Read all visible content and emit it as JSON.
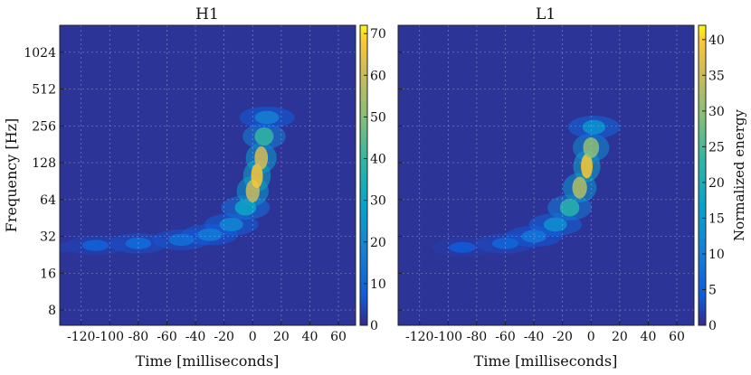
{
  "chart_data": [
    {
      "type": "heatmap",
      "title": "H1",
      "xlabel": "Time [milliseconds]",
      "ylabel": "Frequency [Hz]",
      "xlim": [
        -135,
        72
      ],
      "ylim": [
        6,
        1700
      ],
      "y_scale": "log2",
      "x_ticks": [
        -120,
        -100,
        -80,
        -60,
        -40,
        -20,
        0,
        20,
        40,
        60
      ],
      "y_ticks": [
        8,
        16,
        32,
        64,
        128,
        256,
        512,
        1024
      ],
      "colorbar": {
        "label": "",
        "min": 0,
        "max": 72,
        "ticks": [
          0,
          10,
          20,
          30,
          40,
          50,
          60,
          70
        ]
      },
      "grid": true,
      "track": [
        {
          "t": -130,
          "f": 26,
          "e": 3
        },
        {
          "t": -110,
          "f": 27,
          "e": 9
        },
        {
          "t": -80,
          "f": 28,
          "e": 12
        },
        {
          "t": -50,
          "f": 30,
          "e": 13
        },
        {
          "t": -30,
          "f": 33,
          "e": 16
        },
        {
          "t": -15,
          "f": 40,
          "e": 20
        },
        {
          "t": -5,
          "f": 55,
          "e": 30
        },
        {
          "t": 0,
          "f": 75,
          "e": 60
        },
        {
          "t": 3,
          "f": 100,
          "e": 68
        },
        {
          "t": 6,
          "f": 140,
          "e": 62
        },
        {
          "t": 8,
          "f": 210,
          "e": 40
        },
        {
          "t": 10,
          "f": 300,
          "e": 18
        }
      ]
    },
    {
      "type": "heatmap",
      "title": "L1",
      "xlabel": "Time [milliseconds]",
      "ylabel": "",
      "xlim": [
        -135,
        72
      ],
      "ylim": [
        6,
        1700
      ],
      "y_scale": "log2",
      "x_ticks": [
        -120,
        -100,
        -80,
        -60,
        -40,
        -20,
        0,
        20,
        40,
        60
      ],
      "y_ticks": [],
      "colorbar": {
        "label": "Normalized energy",
        "min": 0,
        "max": 42,
        "ticks": [
          0,
          5,
          10,
          15,
          20,
          25,
          30,
          35,
          40
        ]
      },
      "grid": true,
      "track": [
        {
          "t": -90,
          "f": 26,
          "e": 4
        },
        {
          "t": -60,
          "f": 28,
          "e": 6
        },
        {
          "t": -40,
          "f": 32,
          "e": 9
        },
        {
          "t": -25,
          "f": 40,
          "e": 13
        },
        {
          "t": -15,
          "f": 55,
          "e": 22
        },
        {
          "t": -8,
          "f": 80,
          "e": 33
        },
        {
          "t": -3,
          "f": 120,
          "e": 40
        },
        {
          "t": 0,
          "f": 170,
          "e": 30
        },
        {
          "t": 2,
          "f": 250,
          "e": 14
        }
      ]
    }
  ]
}
